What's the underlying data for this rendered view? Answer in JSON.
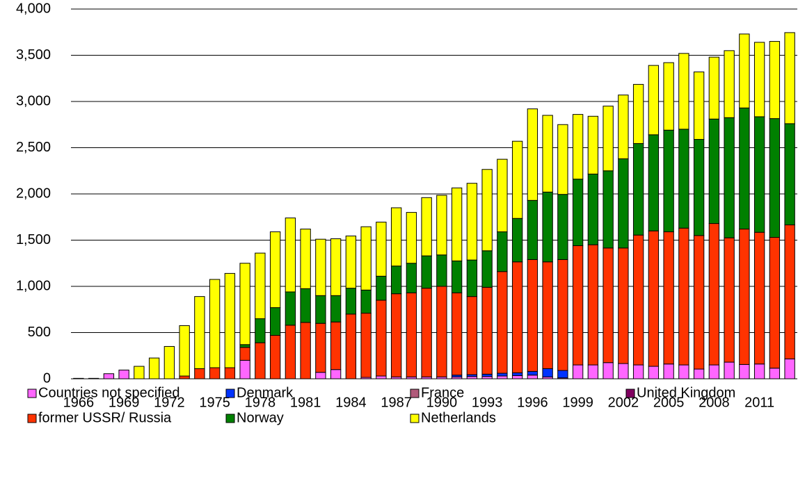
{
  "chart_data": {
    "type": "stacked-bar",
    "categories": [
      "1966",
      null,
      null,
      "1969",
      null,
      null,
      "1972",
      null,
      null,
      "1975",
      null,
      null,
      "1978",
      null,
      null,
      "1981",
      null,
      null,
      "1984",
      null,
      null,
      "1987",
      null,
      null,
      "1990",
      null,
      null,
      "1993",
      null,
      null,
      "1996",
      null,
      null,
      "1999",
      null,
      null,
      "2002",
      null,
      null,
      "2005",
      null,
      null,
      "2008",
      null,
      null,
      "2011",
      null,
      null
    ],
    "series": [
      {
        "name": "Countries not specified",
        "color": "#ff66ff",
        "values": [
          5,
          5,
          55,
          95,
          0,
          0,
          0,
          0,
          0,
          0,
          0,
          200,
          0,
          0,
          0,
          0,
          70,
          100,
          0,
          15,
          30,
          20,
          20,
          20,
          20,
          20,
          25,
          25,
          30,
          35,
          40,
          20,
          10,
          150,
          150,
          175,
          165,
          150,
          135,
          160,
          150,
          105,
          150,
          180,
          155,
          160,
          115,
          215
        ]
      },
      {
        "name": "Denmark",
        "color": "#0033ff",
        "values": [
          0,
          0,
          0,
          0,
          0,
          0,
          0,
          0,
          0,
          0,
          0,
          0,
          0,
          0,
          0,
          0,
          0,
          0,
          0,
          0,
          0,
          0,
          0,
          0,
          0,
          20,
          20,
          25,
          30,
          30,
          40,
          90,
          80,
          0,
          0,
          0,
          0,
          0,
          0,
          0,
          0,
          0,
          0,
          0,
          0,
          0,
          0,
          0
        ]
      },
      {
        "name": "France",
        "color": "#b05a7a",
        "values": [
          0,
          0,
          0,
          0,
          0,
          0,
          0,
          0,
          0,
          0,
          0,
          0,
          0,
          0,
          0,
          0,
          0,
          0,
          0,
          0,
          0,
          0,
          0,
          0,
          0,
          0,
          0,
          0,
          0,
          0,
          0,
          0,
          0,
          0,
          0,
          0,
          0,
          0,
          0,
          0,
          0,
          0,
          0,
          0,
          0,
          0,
          0,
          0
        ]
      },
      {
        "name": "United Kingdom",
        "color": "#800060",
        "values": [
          0,
          0,
          0,
          0,
          0,
          0,
          0,
          0,
          0,
          0,
          0,
          0,
          0,
          0,
          0,
          0,
          0,
          0,
          0,
          0,
          0,
          0,
          0,
          0,
          0,
          0,
          0,
          0,
          0,
          0,
          0,
          0,
          0,
          0,
          0,
          0,
          0,
          0,
          0,
          0,
          0,
          0,
          0,
          0,
          0,
          0,
          0,
          0
        ]
      },
      {
        "name": "former USSR/ Russia",
        "color": "#ff3300",
        "values": [
          0,
          0,
          0,
          0,
          0,
          0,
          0,
          30,
          110,
          120,
          120,
          140,
          390,
          470,
          580,
          610,
          530,
          515,
          700,
          695,
          820,
          900,
          910,
          960,
          980,
          890,
          845,
          940,
          1100,
          1200,
          1210,
          1155,
          1200,
          1290,
          1300,
          1240,
          1250,
          1405,
          1465,
          1430,
          1480,
          1445,
          1530,
          1345,
          1465,
          1425,
          1415,
          1450
        ]
      },
      {
        "name": "Norway",
        "color": "#008000",
        "values": [
          0,
          0,
          0,
          0,
          0,
          0,
          0,
          0,
          0,
          0,
          0,
          30,
          260,
          300,
          360,
          365,
          300,
          285,
          280,
          250,
          260,
          300,
          320,
          350,
          340,
          345,
          395,
          395,
          430,
          470,
          640,
          755,
          705,
          720,
          765,
          835,
          965,
          990,
          1040,
          1100,
          1070,
          1040,
          1130,
          1300,
          1310,
          1250,
          1285,
          1095
        ]
      },
      {
        "name": "Netherlands",
        "color": "#ffff00",
        "values": [
          0,
          0,
          0,
          0,
          135,
          225,
          350,
          545,
          780,
          955,
          1020,
          880,
          710,
          820,
          800,
          645,
          610,
          615,
          565,
          685,
          585,
          630,
          550,
          630,
          645,
          790,
          830,
          880,
          785,
          835,
          990,
          830,
          755,
          700,
          625,
          700,
          690,
          640,
          750,
          730,
          820,
          730,
          670,
          725,
          800,
          805,
          835,
          985
        ]
      }
    ],
    "ylim": [
      0,
      4000
    ],
    "yticks": [
      0,
      500,
      {
        "value": 1000,
        "label": "1,000"
      },
      {
        "value": 1500,
        "label": "1,500"
      },
      {
        "value": 2000,
        "label": "2,000"
      },
      {
        "value": 2500,
        "label": "2,500"
      },
      {
        "value": 3000,
        "label": "3,000"
      },
      {
        "value": 3500,
        "label": "3,500"
      },
      {
        "value": 4000,
        "label": "4,000"
      }
    ],
    "grid": true,
    "legend": "bottom"
  }
}
